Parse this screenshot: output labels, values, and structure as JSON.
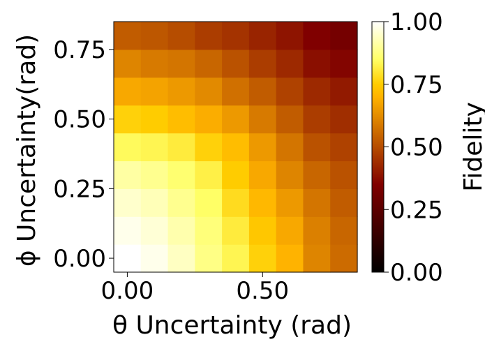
{
  "chart_data": {
    "type": "heatmap",
    "xlabel": "θ Uncertainty (rad)",
    "ylabel": "ϕ Uncertainty(rad)",
    "colorbar_label": "Fidelity",
    "colormap": "gist_heat",
    "x_range": [
      -0.05,
      0.85
    ],
    "y_range": [
      -0.05,
      0.85
    ],
    "x_ticks": [
      {
        "value": 0.0,
        "label": "0.00"
      },
      {
        "value": 0.5,
        "label": "0.50"
      }
    ],
    "y_ticks": [
      {
        "value": 0.0,
        "label": "0.00"
      },
      {
        "value": 0.25,
        "label": "0.25"
      },
      {
        "value": 0.5,
        "label": "0.50"
      },
      {
        "value": 0.75,
        "label": "0.75"
      }
    ],
    "colorbar_range": [
      0.0,
      1.0
    ],
    "colorbar_ticks": [
      {
        "value": 0.0,
        "label": "0.00"
      },
      {
        "value": 0.25,
        "label": "0.25"
      },
      {
        "value": 0.5,
        "label": "0.50"
      },
      {
        "value": 0.75,
        "label": "0.75"
      },
      {
        "value": 1.0,
        "label": "1.00"
      }
    ],
    "x": [
      0.0,
      0.1,
      0.2,
      0.3,
      0.4,
      0.5,
      0.6,
      0.7,
      0.8
    ],
    "y": [
      0.0,
      0.1,
      0.2,
      0.3,
      0.4,
      0.5,
      0.6,
      0.7,
      0.8
    ],
    "values": [
      [
        1.0,
        0.98,
        0.94,
        0.88,
        0.83,
        0.76,
        0.7,
        0.61,
        0.56
      ],
      [
        0.98,
        0.96,
        0.92,
        0.87,
        0.81,
        0.74,
        0.68,
        0.6,
        0.55
      ],
      [
        0.95,
        0.93,
        0.89,
        0.85,
        0.78,
        0.71,
        0.65,
        0.58,
        0.53
      ],
      [
        0.91,
        0.89,
        0.86,
        0.82,
        0.75,
        0.68,
        0.61,
        0.55,
        0.51
      ],
      [
        0.84,
        0.83,
        0.81,
        0.76,
        0.72,
        0.65,
        0.58,
        0.51,
        0.48
      ],
      [
        0.76,
        0.75,
        0.72,
        0.69,
        0.65,
        0.59,
        0.53,
        0.47,
        0.44
      ],
      [
        0.68,
        0.67,
        0.65,
        0.62,
        0.57,
        0.53,
        0.48,
        0.43,
        0.4
      ],
      [
        0.61,
        0.59,
        0.58,
        0.55,
        0.51,
        0.47,
        0.43,
        0.38,
        0.36
      ],
      [
        0.53,
        0.52,
        0.5,
        0.47,
        0.45,
        0.42,
        0.39,
        0.35,
        0.32
      ]
    ]
  }
}
